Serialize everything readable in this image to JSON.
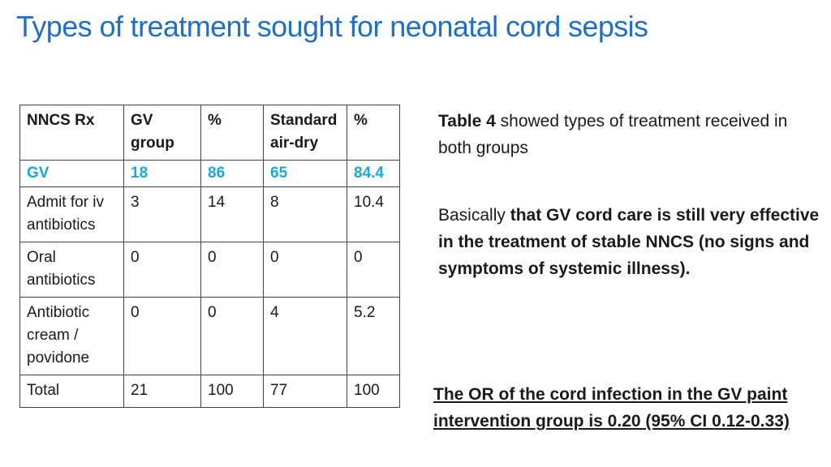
{
  "title": "Types of treatment sought for neonatal cord sepsis",
  "table": {
    "headers": [
      "NNCS Rx",
      "GV group",
      "%",
      "Standard air-dry",
      "%"
    ],
    "highlight_row": [
      "GV",
      "18",
      "86",
      "65",
      "84.4"
    ],
    "rows": [
      [
        "Admit for iv antibiotics",
        "3",
        "14",
        "8",
        "10.4"
      ],
      [
        "Oral antibiotics",
        "0",
        "0",
        "0",
        "0"
      ],
      [
        "Antibiotic cream / povidone",
        "0",
        "0",
        "4",
        "5.2"
      ],
      [
        "Total",
        "21",
        "100",
        "77",
        "100"
      ]
    ]
  },
  "note1": {
    "bold": "Table 4",
    "text": " showed types of treatment received in both groups"
  },
  "note2": {
    "text": " Basically ",
    "bold": "that GV cord care is still very effective in the treatment of stable NNCS (no signs and symptoms of systemic illness)."
  },
  "note3": {
    "text": "The OR of the cord infection in the GV paint intervention group is 0.20 (95% CI 0.12-0.33)"
  },
  "colors": {
    "title": "#1f6fc4",
    "highlight": "#19a7e0"
  }
}
